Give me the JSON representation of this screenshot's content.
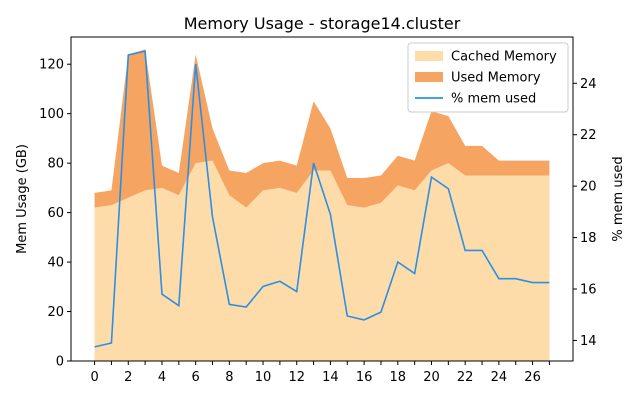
{
  "chart_data": {
    "type": "area",
    "title": "Memory Usage - storage14.cluster",
    "xlabel": "",
    "ylabel": "Mem Usage (GB)",
    "y2label": "% mem used",
    "x": [
      0,
      1,
      2,
      3,
      4,
      5,
      6,
      7,
      8,
      9,
      10,
      11,
      12,
      13,
      14,
      15,
      16,
      17,
      18,
      19,
      20,
      21,
      22,
      23,
      24,
      25,
      26,
      27
    ],
    "xticks": [
      "0",
      "2",
      "4",
      "6",
      "8",
      "10",
      "12",
      "14",
      "16",
      "18",
      "20",
      "22",
      "24",
      "26"
    ],
    "xlim": [
      -1.4,
      28.4
    ],
    "ylim": [
      0,
      131
    ],
    "yticks": [
      "0",
      "20",
      "40",
      "60",
      "80",
      "100",
      "120"
    ],
    "y2lim": [
      13.2,
      25.8
    ],
    "y2ticks": [
      "14",
      "16",
      "18",
      "20",
      "22",
      "24"
    ],
    "legend_position": "top-right",
    "colors": {
      "cached": "#fddcaa",
      "used": "#f5a462",
      "pct": "#2c8fe6"
    },
    "series": [
      {
        "name": "Cached Memory",
        "axis": "left",
        "kind": "area-bottom",
        "values": [
          62,
          63,
          66,
          69,
          70,
          67,
          80,
          81,
          67,
          62,
          69,
          70,
          68,
          77,
          77,
          63,
          62,
          64,
          71,
          69,
          77,
          80,
          75,
          75,
          75,
          75,
          75,
          75
        ]
      },
      {
        "name": "Used Memory",
        "axis": "left",
        "kind": "area-top",
        "values": [
          68,
          69,
          124,
          126,
          79,
          76,
          124,
          94,
          77,
          76,
          80,
          81,
          79,
          105,
          94,
          74,
          74,
          75,
          83,
          81,
          101,
          99,
          87,
          87,
          81,
          81,
          81,
          81
        ]
      },
      {
        "name": "% mem used",
        "axis": "right",
        "kind": "line",
        "values": [
          13.75,
          13.9,
          25.1,
          25.25,
          15.8,
          15.35,
          24.75,
          18.8,
          15.4,
          15.3,
          16.1,
          16.3,
          15.9,
          20.9,
          18.9,
          14.95,
          14.8,
          15.1,
          17.05,
          16.6,
          20.35,
          19.9,
          17.5,
          17.5,
          16.4,
          16.4,
          16.25,
          16.25
        ]
      }
    ]
  }
}
